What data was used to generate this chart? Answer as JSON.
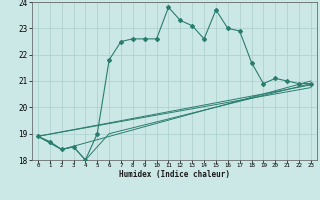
{
  "xlabel": "Humidex (Indice chaleur)",
  "bg_color": "#cce8e6",
  "grid_color": "#aacfcc",
  "line_color": "#2a7d6e",
  "xlim": [
    -0.5,
    23.5
  ],
  "ylim": [
    18,
    24
  ],
  "yticks": [
    18,
    19,
    20,
    21,
    22,
    23,
    24
  ],
  "xticks": [
    0,
    1,
    2,
    3,
    4,
    5,
    6,
    7,
    8,
    9,
    10,
    11,
    12,
    13,
    14,
    15,
    16,
    17,
    18,
    19,
    20,
    21,
    22,
    23
  ],
  "series": [
    [
      0,
      18.9
    ],
    [
      1,
      18.7
    ],
    [
      2,
      18.4
    ],
    [
      3,
      18.5
    ],
    [
      4,
      18.0
    ],
    [
      5,
      19.0
    ],
    [
      6,
      21.8
    ],
    [
      7,
      22.5
    ],
    [
      8,
      22.6
    ],
    [
      9,
      22.6
    ],
    [
      10,
      22.6
    ],
    [
      11,
      23.8
    ],
    [
      12,
      23.3
    ],
    [
      13,
      23.1
    ],
    [
      14,
      22.6
    ],
    [
      15,
      23.7
    ],
    [
      16,
      23.0
    ],
    [
      17,
      22.9
    ],
    [
      18,
      21.7
    ],
    [
      19,
      20.9
    ],
    [
      20,
      21.1
    ],
    [
      21,
      21.0
    ],
    [
      22,
      20.9
    ],
    [
      23,
      20.9
    ]
  ],
  "line2": [
    [
      0,
      18.9
    ],
    [
      2,
      18.4
    ],
    [
      3,
      18.5
    ],
    [
      4,
      18.0
    ],
    [
      6,
      19.0
    ],
    [
      23,
      20.9
    ]
  ],
  "line3": [
    [
      0,
      18.9
    ],
    [
      2,
      18.4
    ],
    [
      23,
      21.0
    ]
  ],
  "line4": [
    [
      0,
      18.9
    ],
    [
      23,
      20.85
    ]
  ],
  "line5": [
    [
      0,
      18.9
    ],
    [
      23,
      20.75
    ]
  ]
}
